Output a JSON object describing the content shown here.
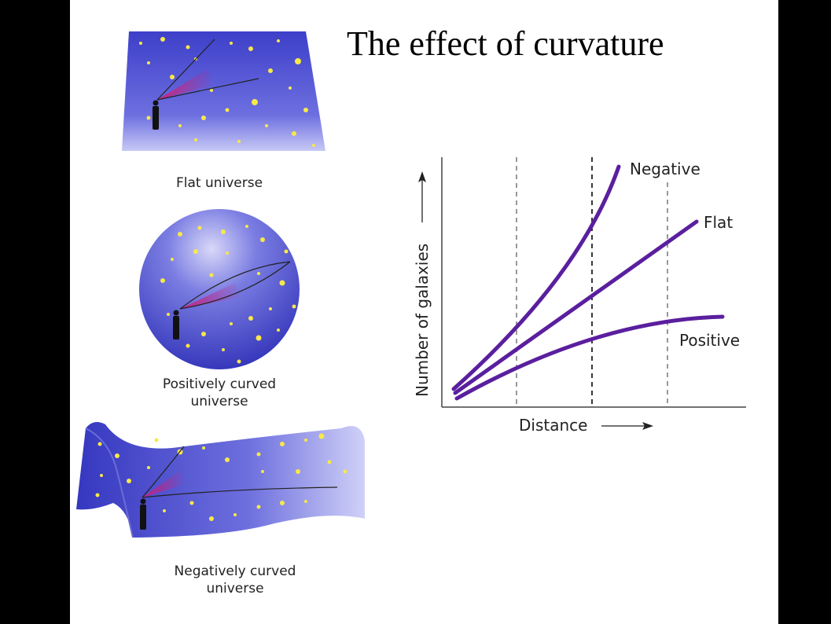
{
  "title": "The effect of curvature",
  "panels": {
    "flat": "Flat universe",
    "positive": [
      "Positively curved",
      "universe"
    ],
    "negative": [
      "Negatively curved",
      "universe"
    ]
  },
  "graph": {
    "xlabel": "Distance",
    "ylabel": "Number of galaxies",
    "curves": [
      "Negative",
      "Flat",
      "Positive"
    ]
  },
  "colors": {
    "curve": "#5a1f9e",
    "surface": "#4a4fd0",
    "star": "#f7e84a",
    "cone": "#c8237e"
  }
}
